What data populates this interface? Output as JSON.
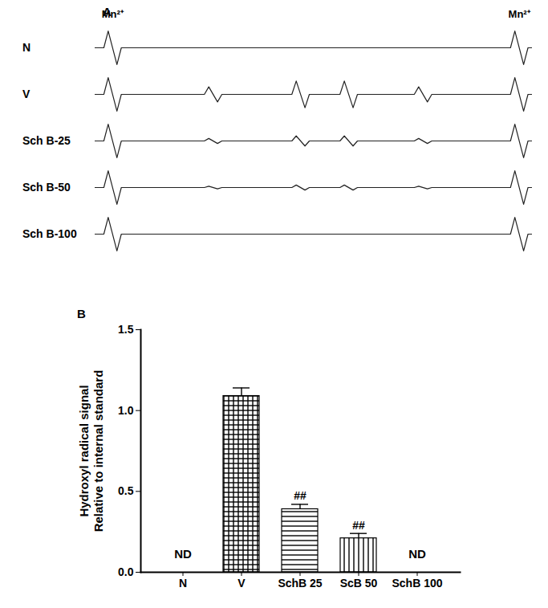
{
  "chart_data": [
    {
      "type": "line",
      "title": "A",
      "tick_labels": false,
      "xlim": [
        0,
        100
      ],
      "ylim": [
        -1.2,
        1.2
      ],
      "x": [
        0,
        2,
        3,
        5,
        6,
        25,
        26,
        28,
        29,
        45,
        46,
        48,
        49,
        56,
        57,
        59,
        60,
        73,
        74,
        76,
        77,
        95,
        96,
        98,
        99,
        100
      ],
      "annotations": [
        {
          "text": "Mn²⁺",
          "x": 4
        },
        {
          "text": "Mn²⁺",
          "x": 97
        }
      ],
      "series": [
        {
          "name": "N",
          "color": "#222222",
          "values": [
            0,
            0,
            1,
            -1,
            0,
            0,
            0,
            0,
            0,
            0,
            0,
            0,
            0,
            0,
            0,
            0,
            0,
            0,
            0,
            0,
            0,
            0,
            1,
            -1,
            0,
            0
          ]
        },
        {
          "name": "V",
          "color": "#222222",
          "values": [
            0,
            0,
            1,
            -1,
            0,
            0,
            0.45,
            -0.45,
            0,
            0,
            0.8,
            -0.8,
            0,
            0,
            0.8,
            -0.8,
            0,
            0,
            0.45,
            -0.45,
            0,
            0,
            1,
            -1,
            0,
            0
          ]
        },
        {
          "name": "Sch B-25",
          "color": "#222222",
          "values": [
            0,
            0,
            1,
            -1,
            0,
            0,
            0.15,
            -0.15,
            0,
            0,
            0.3,
            -0.3,
            0,
            0,
            0.3,
            -0.3,
            0,
            0,
            0.15,
            -0.15,
            0,
            0,
            1,
            -1,
            0,
            0
          ]
        },
        {
          "name": "Sch B-50",
          "color": "#222222",
          "values": [
            0,
            0,
            1,
            -1,
            0,
            0,
            0.08,
            -0.08,
            0,
            0,
            0.15,
            -0.15,
            0,
            0,
            0.15,
            -0.15,
            0,
            0,
            0.08,
            -0.08,
            0,
            0,
            1,
            -1,
            0,
            0
          ]
        },
        {
          "name": "Sch B-100",
          "color": "#222222",
          "values": [
            0,
            0,
            1,
            -1,
            0,
            0,
            0,
            0,
            0,
            0,
            0,
            0,
            0,
            0,
            0,
            0,
            0,
            0,
            0,
            0,
            0,
            0,
            1,
            -1,
            0,
            0
          ]
        }
      ]
    },
    {
      "type": "bar",
      "title": "B",
      "ylabel": "Hydroxyl radical signal\nRelative to internal standard",
      "categories": [
        "N",
        "V",
        "SchB 25",
        "ScB 50",
        "SchB 100"
      ],
      "values": [
        null,
        1.09,
        0.39,
        0.21,
        null
      ],
      "value_labels": [
        "ND",
        null,
        null,
        null,
        "ND"
      ],
      "errors": [
        null,
        0.05,
        0.03,
        0.03,
        null
      ],
      "significance": [
        null,
        null,
        "##",
        "##",
        null
      ],
      "colors": [
        "#000000",
        "#000000",
        "#000000",
        "#000000",
        "#000000"
      ],
      "ylim": [
        0,
        1.5
      ],
      "yticks": [
        {
          "value": 0,
          "label": "0.0"
        },
        {
          "value": 0.5,
          "label": "0.5"
        },
        {
          "value": 1,
          "label": "1.0"
        },
        {
          "value": 1.5,
          "label": "1.5"
        }
      ]
    }
  ]
}
